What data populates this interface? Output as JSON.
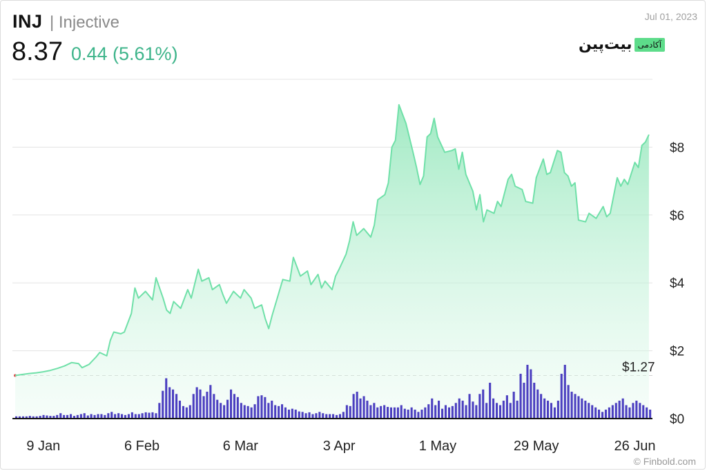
{
  "header": {
    "ticker": "INJ",
    "name": "| Injective",
    "price": "8.37",
    "change": "0.44 (5.61%)",
    "date": "Jul 01, 2023"
  },
  "logo": {
    "text": "بیت‌پین",
    "badge": "آکادمی"
  },
  "credit": "© Finbold.com",
  "colors": {
    "line": "#6fe0a8",
    "area": "#c9f3dd",
    "volume": "#4b3fc0",
    "up": "#3db48a",
    "grid": "#e3e3e3"
  },
  "chart_data": {
    "type": "area",
    "xlim": [
      "2023-01-01",
      "2023-07-01"
    ],
    "ylim": [
      0,
      10
    ],
    "x_ticks": [
      {
        "date": "2023-01-09",
        "label": "9 Jan"
      },
      {
        "date": "2023-02-06",
        "label": "6 Feb"
      },
      {
        "date": "2023-03-06",
        "label": "6 Mar"
      },
      {
        "date": "2023-04-03",
        "label": "3 Apr"
      },
      {
        "date": "2023-05-01",
        "label": "1 May"
      },
      {
        "date": "2023-05-29",
        "label": "29 May"
      },
      {
        "date": "2023-06-26",
        "label": "26 Jun"
      }
    ],
    "y_ticks": [
      {
        "value": 0,
        "label": "$0"
      },
      {
        "value": 2,
        "label": "$2"
      },
      {
        "value": 4,
        "label": "$4"
      },
      {
        "value": 6,
        "label": "$6"
      },
      {
        "value": 8,
        "label": "$8"
      }
    ],
    "reference_line": {
      "value": 1.27,
      "label": "$1.27"
    },
    "grid": true,
    "series": [
      {
        "values": [
          [
            "2023-01-01",
            1.27
          ],
          [
            "2023-01-03",
            1.3
          ],
          [
            "2023-01-05",
            1.33
          ],
          [
            "2023-01-07",
            1.35
          ],
          [
            "2023-01-09",
            1.38
          ],
          [
            "2023-01-11",
            1.42
          ],
          [
            "2023-01-13",
            1.48
          ],
          [
            "2023-01-15",
            1.55
          ],
          [
            "2023-01-17",
            1.65
          ],
          [
            "2023-01-19",
            1.62
          ],
          [
            "2023-01-20",
            1.5
          ],
          [
            "2023-01-22",
            1.6
          ],
          [
            "2023-01-24",
            1.82
          ],
          [
            "2023-01-25",
            1.95
          ],
          [
            "2023-01-27",
            1.85
          ],
          [
            "2023-01-28",
            2.3
          ],
          [
            "2023-01-29",
            2.55
          ],
          [
            "2023-01-31",
            2.5
          ],
          [
            "2023-02-01",
            2.55
          ],
          [
            "2023-02-03",
            3.1
          ],
          [
            "2023-02-04",
            3.85
          ],
          [
            "2023-02-05",
            3.55
          ],
          [
            "2023-02-07",
            3.75
          ],
          [
            "2023-02-09",
            3.5
          ],
          [
            "2023-02-10",
            4.15
          ],
          [
            "2023-02-12",
            3.55
          ],
          [
            "2023-02-13",
            3.2
          ],
          [
            "2023-02-14",
            3.1
          ],
          [
            "2023-02-15",
            3.45
          ],
          [
            "2023-02-17",
            3.25
          ],
          [
            "2023-02-19",
            3.8
          ],
          [
            "2023-02-20",
            3.55
          ],
          [
            "2023-02-22",
            4.4
          ],
          [
            "2023-02-23",
            4.05
          ],
          [
            "2023-02-25",
            4.15
          ],
          [
            "2023-02-26",
            3.8
          ],
          [
            "2023-02-28",
            3.95
          ],
          [
            "2023-03-01",
            3.65
          ],
          [
            "2023-03-02",
            3.4
          ],
          [
            "2023-03-04",
            3.75
          ],
          [
            "2023-03-06",
            3.55
          ],
          [
            "2023-03-07",
            3.8
          ],
          [
            "2023-03-09",
            3.55
          ],
          [
            "2023-03-10",
            3.25
          ],
          [
            "2023-03-12",
            3.35
          ],
          [
            "2023-03-13",
            2.95
          ],
          [
            "2023-03-14",
            2.65
          ],
          [
            "2023-03-15",
            3.05
          ],
          [
            "2023-03-17",
            3.75
          ],
          [
            "2023-03-18",
            4.1
          ],
          [
            "2023-03-20",
            4.05
          ],
          [
            "2023-03-21",
            4.75
          ],
          [
            "2023-03-23",
            4.2
          ],
          [
            "2023-03-25",
            4.35
          ],
          [
            "2023-03-26",
            3.95
          ],
          [
            "2023-03-28",
            4.25
          ],
          [
            "2023-03-29",
            3.85
          ],
          [
            "2023-03-30",
            4.05
          ],
          [
            "2023-04-01",
            3.8
          ],
          [
            "2023-04-02",
            4.2
          ],
          [
            "2023-04-03",
            4.4
          ],
          [
            "2023-04-05",
            4.85
          ],
          [
            "2023-04-06",
            5.25
          ],
          [
            "2023-04-07",
            5.8
          ],
          [
            "2023-04-08",
            5.4
          ],
          [
            "2023-04-10",
            5.6
          ],
          [
            "2023-04-12",
            5.35
          ],
          [
            "2023-04-13",
            5.7
          ],
          [
            "2023-04-14",
            6.45
          ],
          [
            "2023-04-16",
            6.6
          ],
          [
            "2023-04-17",
            6.95
          ],
          [
            "2023-04-18",
            8.0
          ],
          [
            "2023-04-19",
            8.2
          ],
          [
            "2023-04-20",
            9.25
          ],
          [
            "2023-04-22",
            8.7
          ],
          [
            "2023-04-24",
            7.85
          ],
          [
            "2023-04-25",
            7.4
          ],
          [
            "2023-04-26",
            6.9
          ],
          [
            "2023-04-27",
            7.15
          ],
          [
            "2023-04-28",
            8.3
          ],
          [
            "2023-04-29",
            8.4
          ],
          [
            "2023-04-30",
            8.85
          ],
          [
            "2023-05-01",
            8.3
          ],
          [
            "2023-05-03",
            7.85
          ],
          [
            "2023-05-05",
            7.9
          ],
          [
            "2023-05-06",
            7.95
          ],
          [
            "2023-05-07",
            7.35
          ],
          [
            "2023-05-08",
            7.85
          ],
          [
            "2023-05-09",
            7.2
          ],
          [
            "2023-05-11",
            6.7
          ],
          [
            "2023-05-12",
            6.15
          ],
          [
            "2023-05-13",
            6.6
          ],
          [
            "2023-05-14",
            5.8
          ],
          [
            "2023-05-15",
            6.15
          ],
          [
            "2023-05-17",
            6.05
          ],
          [
            "2023-05-18",
            6.4
          ],
          [
            "2023-05-19",
            6.25
          ],
          [
            "2023-05-21",
            7.05
          ],
          [
            "2023-05-22",
            7.2
          ],
          [
            "2023-05-23",
            6.85
          ],
          [
            "2023-05-25",
            6.75
          ],
          [
            "2023-05-26",
            6.4
          ],
          [
            "2023-05-28",
            6.35
          ],
          [
            "2023-05-29",
            7.1
          ],
          [
            "2023-05-31",
            7.65
          ],
          [
            "2023-06-01",
            7.2
          ],
          [
            "2023-06-02",
            7.25
          ],
          [
            "2023-06-04",
            7.9
          ],
          [
            "2023-06-05",
            7.85
          ],
          [
            "2023-06-06",
            7.25
          ],
          [
            "2023-06-07",
            7.15
          ],
          [
            "2023-06-08",
            6.85
          ],
          [
            "2023-06-09",
            6.95
          ],
          [
            "2023-06-10",
            5.85
          ],
          [
            "2023-06-12",
            5.8
          ],
          [
            "2023-06-13",
            6.05
          ],
          [
            "2023-06-15",
            5.9
          ],
          [
            "2023-06-17",
            6.25
          ],
          [
            "2023-06-18",
            5.95
          ],
          [
            "2023-06-19",
            6.05
          ],
          [
            "2023-06-21",
            7.1
          ],
          [
            "2023-06-22",
            6.85
          ],
          [
            "2023-06-23",
            7.05
          ],
          [
            "2023-06-24",
            6.9
          ],
          [
            "2023-06-26",
            7.55
          ],
          [
            "2023-06-27",
            7.4
          ],
          [
            "2023-06-28",
            8.05
          ],
          [
            "2023-06-29",
            8.15
          ],
          [
            "2023-06-30",
            8.37
          ]
        ]
      }
    ],
    "volume": [
      0.05,
      0.05,
      0.05,
      0.05,
      0.06,
      0.05,
      0.05,
      0.06,
      0.08,
      0.07,
      0.06,
      0.06,
      0.08,
      0.12,
      0.08,
      0.08,
      0.1,
      0.06,
      0.08,
      0.1,
      0.12,
      0.07,
      0.1,
      0.08,
      0.1,
      0.1,
      0.08,
      0.12,
      0.15,
      0.1,
      0.12,
      0.1,
      0.08,
      0.1,
      0.14,
      0.1,
      0.1,
      0.12,
      0.14,
      0.13,
      0.14,
      0.12,
      0.35,
      0.62,
      0.9,
      0.7,
      0.65,
      0.55,
      0.4,
      0.28,
      0.25,
      0.3,
      0.55,
      0.7,
      0.65,
      0.5,
      0.6,
      0.75,
      0.55,
      0.42,
      0.35,
      0.3,
      0.42,
      0.65,
      0.55,
      0.48,
      0.35,
      0.3,
      0.28,
      0.25,
      0.32,
      0.5,
      0.52,
      0.48,
      0.35,
      0.4,
      0.3,
      0.28,
      0.32,
      0.25,
      0.2,
      0.22,
      0.2,
      0.16,
      0.15,
      0.12,
      0.14,
      0.1,
      0.12,
      0.15,
      0.12,
      0.1,
      0.1,
      0.1,
      0.08,
      0.1,
      0.15,
      0.3,
      0.28,
      0.55,
      0.6,
      0.45,
      0.5,
      0.4,
      0.3,
      0.35,
      0.25,
      0.28,
      0.3,
      0.26,
      0.25,
      0.25,
      0.25,
      0.3,
      0.22,
      0.2,
      0.25,
      0.2,
      0.15,
      0.2,
      0.25,
      0.32,
      0.45,
      0.3,
      0.4,
      0.22,
      0.3,
      0.25,
      0.28,
      0.35,
      0.45,
      0.4,
      0.3,
      0.55,
      0.38,
      0.3,
      0.55,
      0.65,
      0.35,
      0.8,
      0.45,
      0.35,
      0.3,
      0.4,
      0.52,
      0.35,
      0.6,
      0.4,
      1.0,
      0.8,
      1.2,
      1.1,
      0.8,
      0.65,
      0.55,
      0.45,
      0.4,
      0.35,
      0.25,
      0.4,
      1.0,
      1.2,
      0.75,
      0.6,
      0.55,
      0.5,
      0.45,
      0.4,
      0.35,
      0.3,
      0.25,
      0.2,
      0.15,
      0.2,
      0.25,
      0.3,
      0.35,
      0.4,
      0.45,
      0.3,
      0.25,
      0.35,
      0.4,
      0.35,
      0.3,
      0.25,
      0.2
    ]
  }
}
